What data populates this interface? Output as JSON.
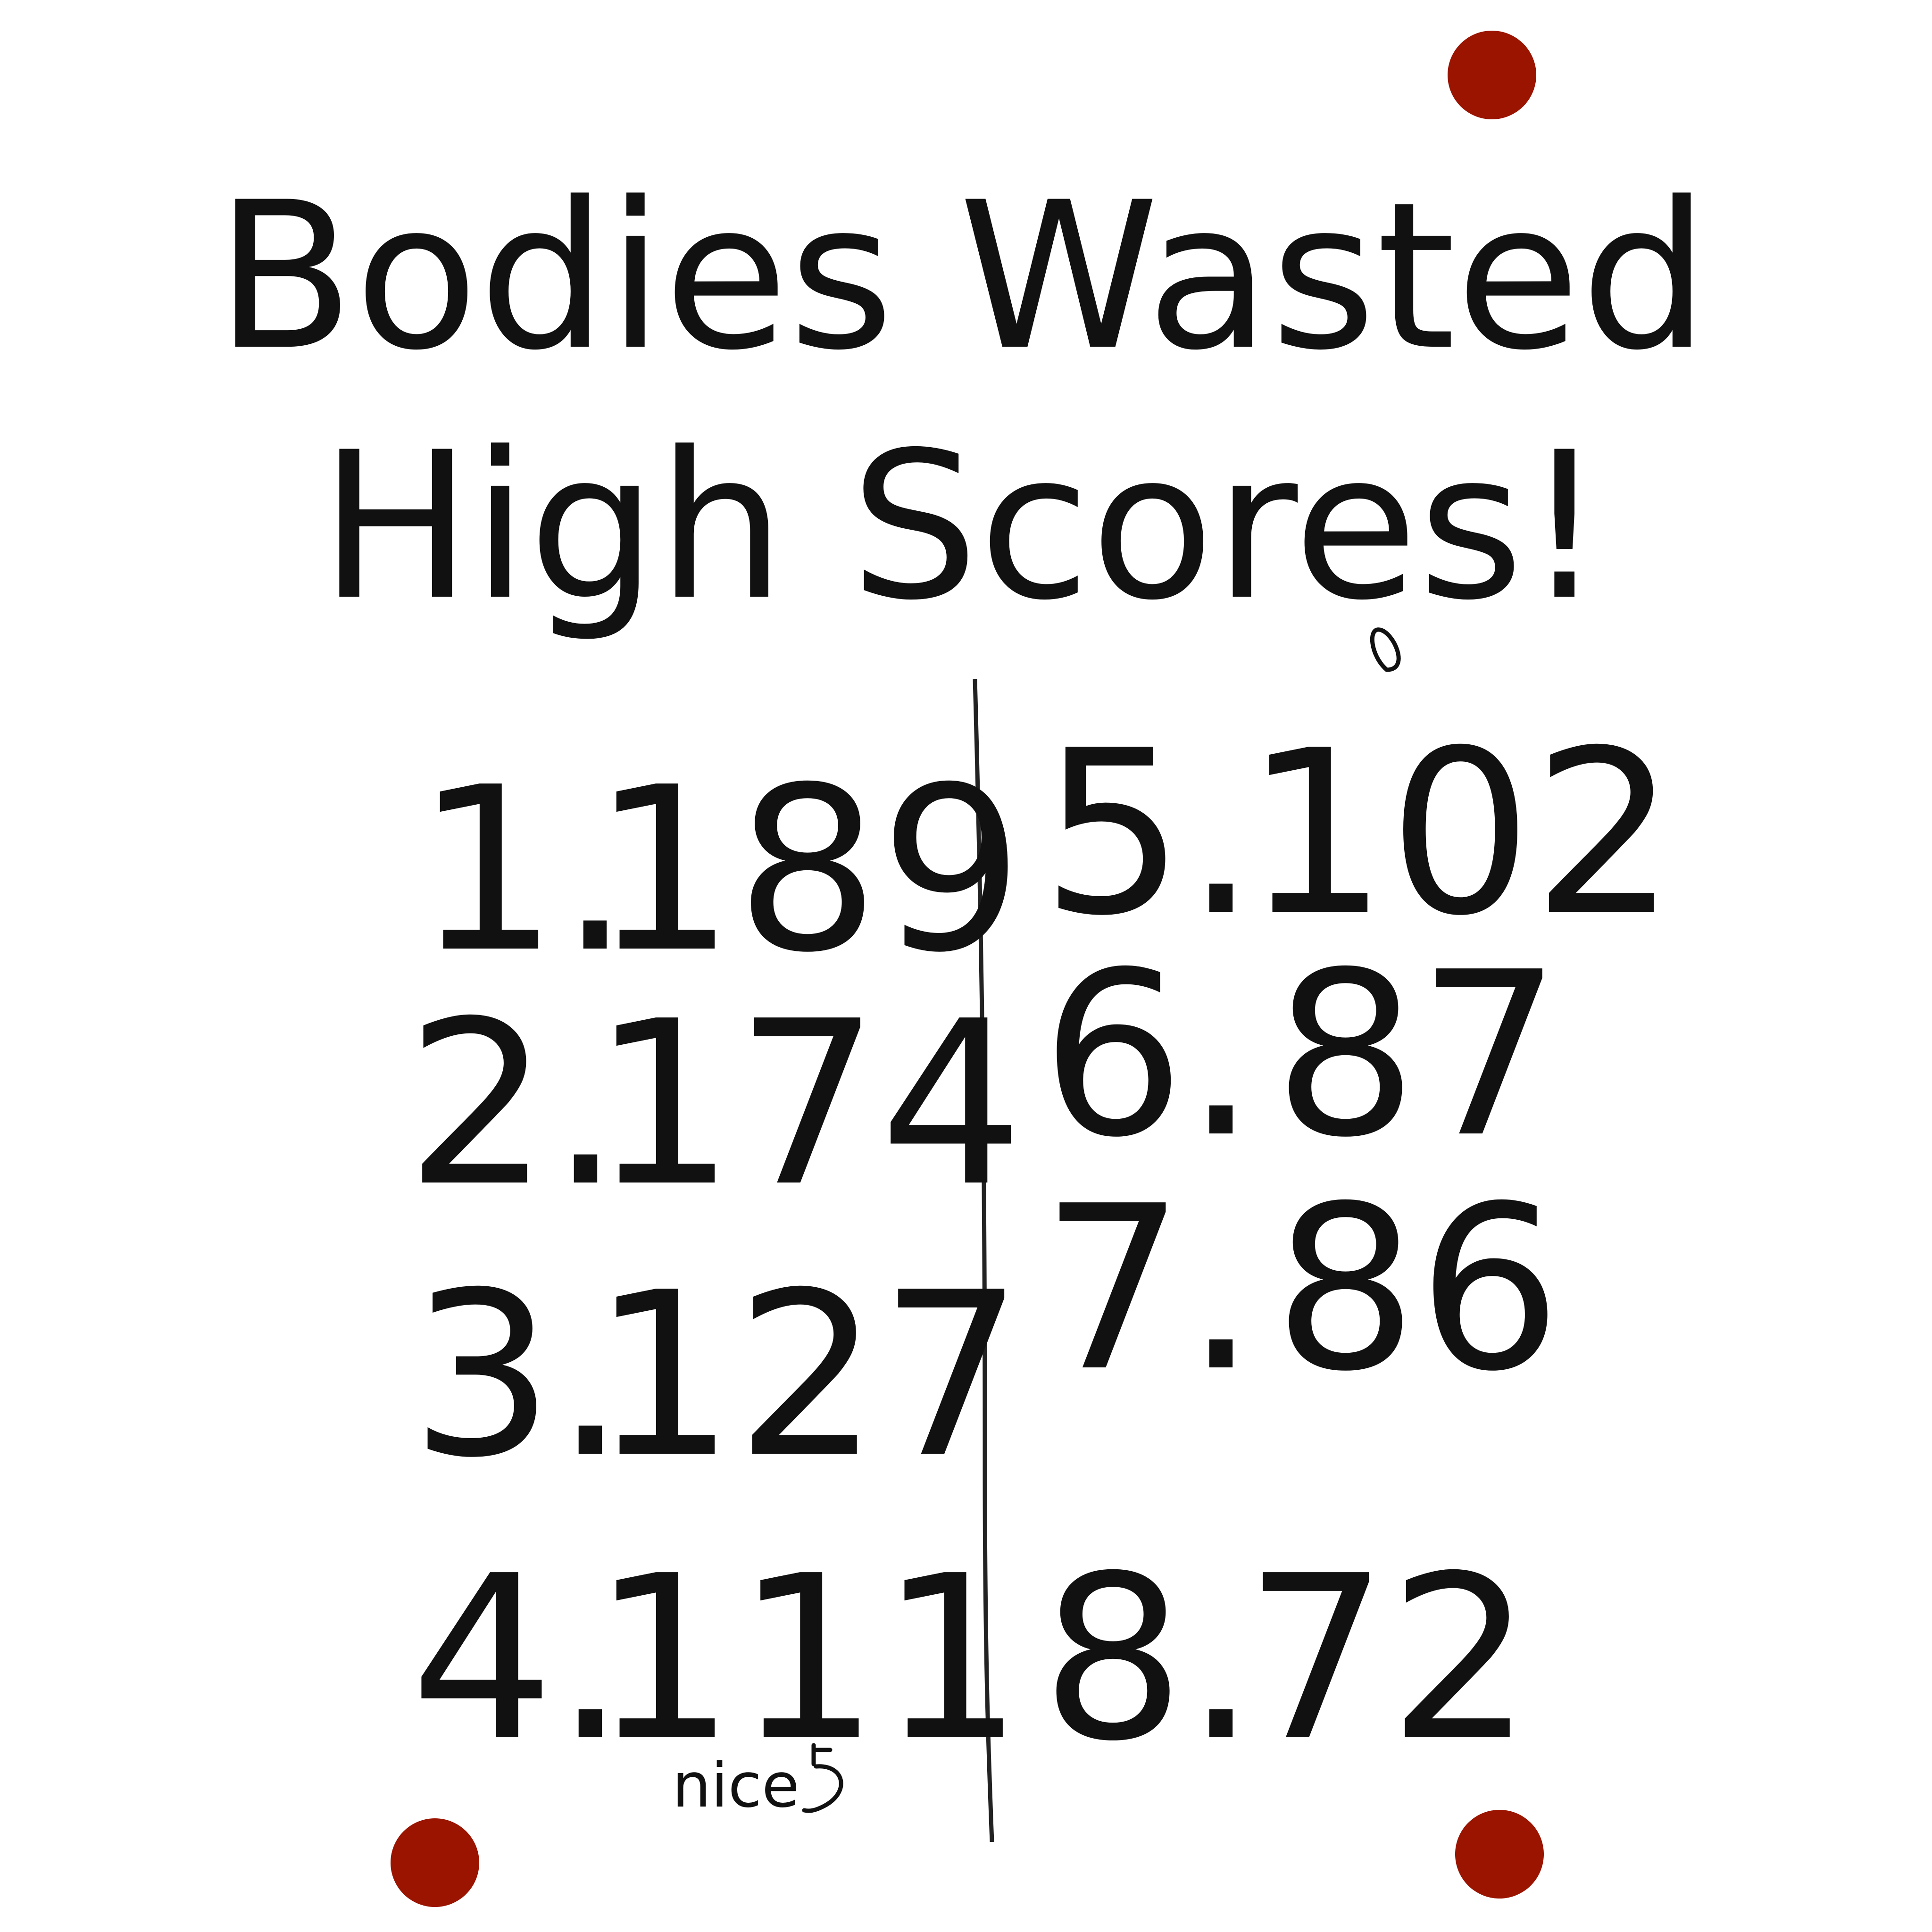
{
  "header": {
    "title_line1": "Bodies Wasted",
    "title_line2": "High Scores!"
  },
  "scores": [
    {
      "rank": "1.",
      "score": 189
    },
    {
      "rank": "2.",
      "score": 174
    },
    {
      "rank": "3.",
      "score": 127
    },
    {
      "rank": "4.",
      "score": 111
    },
    {
      "rank": "5.",
      "score": 102
    },
    {
      "rank": "6.",
      "score": 87
    },
    {
      "rank": "7.",
      "score": 86
    },
    {
      "rank": "8.",
      "score": 72
    }
  ],
  "note": "nice"
}
